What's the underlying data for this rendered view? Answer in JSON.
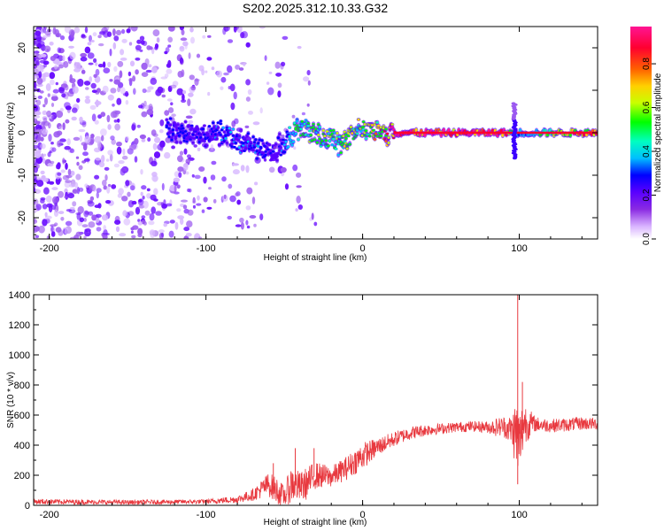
{
  "figure_title": "S202.2025.312.10.33.G32",
  "chart_data": [
    {
      "type": "heatmap",
      "name": "spectrogram",
      "xlabel": "Height of straight line (km)",
      "ylabel": "Frequency (Hz)",
      "xlim": [
        -210,
        150
      ],
      "ylim": [
        -25,
        25
      ],
      "xticks": [
        -200,
        -100,
        0,
        100
      ],
      "yticks": [
        -20,
        -10,
        0,
        10,
        20
      ],
      "colorbar": {
        "label": "Normalized spectral amplitude",
        "range": [
          0,
          0.97
        ],
        "ticks": [
          0.0,
          0.2,
          0.4,
          0.6,
          0.8
        ],
        "colormap": [
          "#ffffff",
          "#d9b3ff",
          "#8a2be2",
          "#5a00ff",
          "#0000ff",
          "#00bfff",
          "#00ffc0",
          "#00ff00",
          "#c8ff00",
          "#ffd000",
          "#ff6000",
          "#ff0030",
          "#ff1493"
        ]
      },
      "ridge": {
        "description": "narrow high-amplitude line near 0 Hz",
        "x": [
          -125,
          -100,
          -90,
          -80,
          -70,
          -60,
          -55,
          -50,
          -40,
          -30,
          -20,
          -15,
          -10,
          -5,
          0,
          5,
          10,
          15,
          20,
          85,
          90,
          95,
          100,
          150
        ],
        "y": [
          1,
          -1,
          0,
          -2,
          -3,
          -5,
          -4,
          -2,
          1,
          0,
          -1,
          -3,
          -2,
          0,
          1,
          1,
          0,
          0,
          0,
          0,
          0,
          0,
          0,
          0
        ],
        "amplitude": [
          0.25,
          0.25,
          0.3,
          0.3,
          0.3,
          0.25,
          0.2,
          0.3,
          0.5,
          0.55,
          0.55,
          0.5,
          0.6,
          0.6,
          0.55,
          0.6,
          0.7,
          0.8,
          0.95,
          0.95,
          0.9,
          0.5,
          0.3,
          0.95
        ]
      },
      "noise": {
        "description": "scattered low-amplitude purple blobs",
        "x_range": [
          -210,
          -30
        ],
        "density_falloff": "decreasing toward higher x"
      },
      "spike": {
        "x": 97,
        "y_range": [
          -6,
          7
        ],
        "amplitude": 0.3
      }
    },
    {
      "type": "line",
      "name": "snr",
      "color": "#e8393f",
      "xlabel": "Height of straight line (km)",
      "ylabel": "SNR (10 * v/v)",
      "xlim": [
        -210,
        150
      ],
      "ylim": [
        0,
        1400
      ],
      "xticks": [
        -200,
        -100,
        0,
        100
      ],
      "yticks": [
        0,
        200,
        400,
        600,
        800,
        1000,
        1200,
        1400
      ],
      "envelope": {
        "x": [
          -210,
          -150,
          -100,
          -80,
          -70,
          -60,
          -55,
          -50,
          -45,
          -40,
          -35,
          -30,
          -20,
          -10,
          0,
          10,
          20,
          30,
          40,
          50,
          60,
          70,
          80,
          85,
          90,
          95,
          98,
          100,
          103,
          110,
          120,
          130,
          140,
          150
        ],
        "mean": [
          25,
          20,
          25,
          40,
          70,
          140,
          100,
          60,
          150,
          120,
          150,
          200,
          190,
          250,
          330,
          390,
          440,
          480,
          500,
          510,
          520,
          525,
          520,
          520,
          525,
          500,
          480,
          400,
          550,
          540,
          530,
          535,
          545,
          540
        ],
        "spread": [
          18,
          15,
          15,
          25,
          40,
          80,
          90,
          70,
          130,
          100,
          110,
          90,
          70,
          80,
          90,
          60,
          50,
          45,
          40,
          35,
          35,
          35,
          40,
          60,
          70,
          100,
          250,
          250,
          150,
          50,
          45,
          45,
          45,
          40
        ]
      },
      "peaks": [
        {
          "x": 99,
          "y": 1400
        },
        {
          "x": 102,
          "y": 820
        },
        {
          "x": 99,
          "y": 140
        },
        {
          "x": -43,
          "y": 380
        },
        {
          "x": -31,
          "y": 380
        },
        {
          "x": -57,
          "y": 280
        }
      ]
    }
  ]
}
